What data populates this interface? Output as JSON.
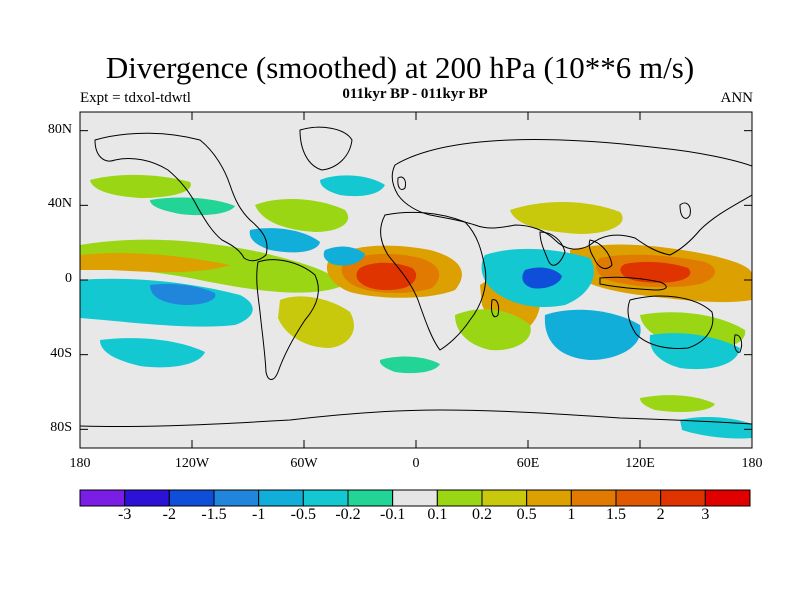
{
  "title": "Divergence (smoothed) at 200 hPa (10**6 m/s)",
  "subtitle": "011kyr BP - 011kyr BP",
  "experiment": "Expt = tdxol-tdwtl",
  "season": "ANN",
  "lat_ticks": [
    "80N",
    "40N",
    "0",
    "40S",
    "80S"
  ],
  "lon_ticks": [
    "180",
    "120W",
    "60W",
    "0",
    "60E",
    "120E",
    "180"
  ],
  "colorbar": {
    "labels": [
      "-3",
      "-2",
      "-1.5",
      "-1",
      "-0.5",
      "-0.2",
      "-0.1",
      "0.1",
      "0.2",
      "0.5",
      "1",
      "1.5",
      "2",
      "3"
    ],
    "colors": [
      "#7a1ee6",
      "#2c12d6",
      "#0f4ed8",
      "#1f86dc",
      "#10aed8",
      "#14c8d2",
      "#22d496",
      "#e6e6e6",
      "#9ad614",
      "#c8c80c",
      "#dca000",
      "#e07a00",
      "#e05800",
      "#e03400",
      "#e00000"
    ]
  },
  "map": {
    "background": "#e8e8e8",
    "field_colors": {
      "strong_pos": "#e03400",
      "pos": "#e07a00",
      "weak_pos": "#dca000",
      "faint_pos": "#c8c80c",
      "min_pos": "#9ad614",
      "min_neg": "#22d496",
      "weak_neg": "#14c8d2",
      "neg": "#10aed8",
      "strong_neg": "#1f86dc",
      "deep_neg": "#0f4ed8"
    }
  }
}
